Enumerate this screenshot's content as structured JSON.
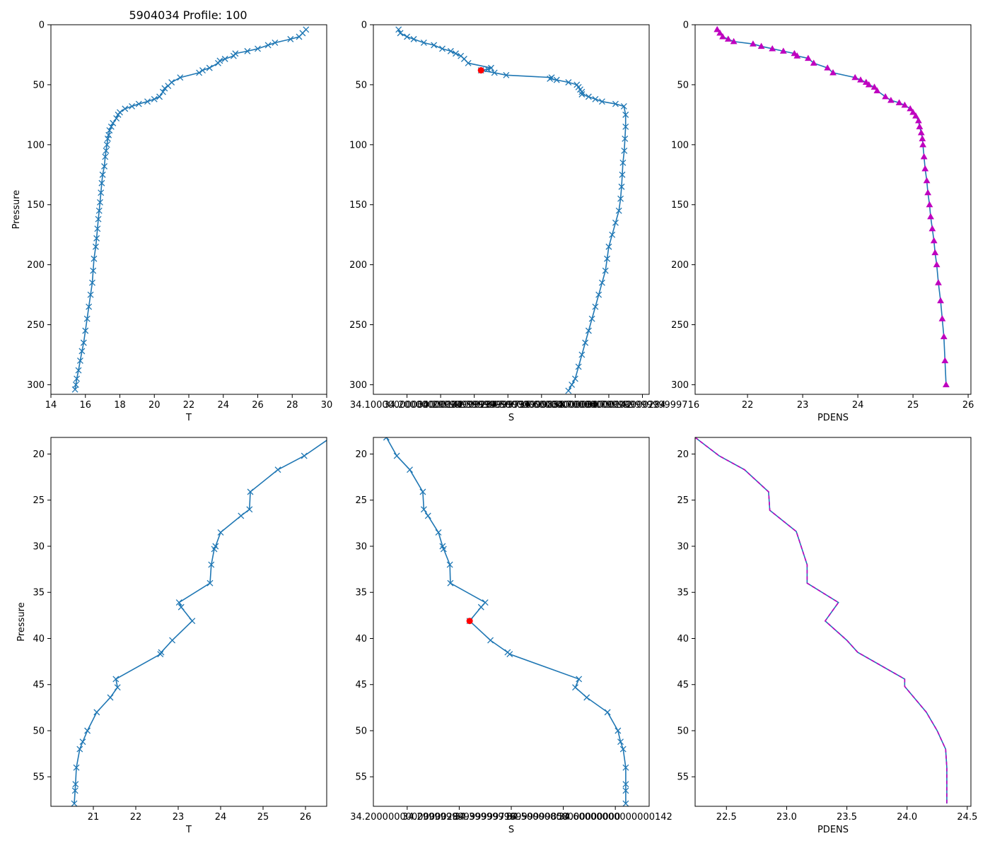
{
  "figure": {
    "title": "5904034 Profile: 100"
  },
  "colors": {
    "series": "#1f77b4",
    "density": "#bf00bf",
    "highlight": "#ff0000"
  },
  "chart_data": [
    {
      "id": "t_full",
      "type": "line",
      "xlabel": "T",
      "ylabel": "Pressure",
      "xlim": [
        14,
        30
      ],
      "ylim": [
        308,
        0
      ],
      "xticks": [
        14,
        16,
        18,
        20,
        22,
        24,
        26,
        28,
        30
      ],
      "yticks": [
        0,
        50,
        100,
        150,
        200,
        250,
        300
      ],
      "marker": "x",
      "series": [
        {
          "name": "T",
          "x": [
            28.8,
            28.6,
            28.4,
            27.9,
            27.0,
            26.6,
            26.0,
            25.4,
            24.7,
            24.6,
            24.1,
            23.8,
            23.7,
            23.2,
            22.8,
            22.6,
            21.5,
            21.0,
            20.8,
            20.6,
            20.5,
            20.3,
            20.0,
            19.6,
            19.1,
            18.7,
            18.3,
            18.0,
            17.9,
            17.8,
            17.6,
            17.5,
            17.4,
            17.35,
            17.3,
            17.25,
            17.2,
            17.15,
            17.1,
            17.0,
            16.95,
            16.9,
            16.85,
            16.8,
            16.75,
            16.7,
            16.65,
            16.6,
            16.5,
            16.45,
            16.4,
            16.3,
            16.2,
            16.1,
            16.0,
            15.9,
            15.8,
            15.7,
            15.6,
            15.5,
            15.45,
            15.4
          ],
          "y": [
            4,
            7,
            10,
            12,
            15,
            17,
            20,
            22,
            24,
            26,
            28.5,
            30,
            32,
            36,
            38,
            40,
            44,
            48,
            51,
            53,
            56,
            60,
            62,
            64,
            66,
            68,
            70,
            73,
            75,
            78,
            82,
            85,
            88,
            92,
            95,
            100,
            105,
            110,
            118,
            125,
            132,
            140,
            148,
            155,
            162,
            170,
            178,
            185,
            195,
            205,
            215,
            225,
            235,
            245,
            255,
            265,
            272,
            280,
            288,
            295,
            300,
            304
          ]
        }
      ],
      "points": []
    },
    {
      "id": "s_full",
      "type": "line",
      "xlabel": "S",
      "ylabel": "",
      "xlim": [
        34.0,
        34.82
      ],
      "ylim": [
        308,
        0
      ],
      "xticks": [
        34.1,
        34.2,
        34.3,
        34.4,
        34.5,
        34.6,
        34.7,
        34.8
      ],
      "yticks": [
        0,
        50,
        100,
        150,
        200,
        250,
        300
      ],
      "marker": "x",
      "series": [
        {
          "name": "S",
          "x": [
            34.075,
            34.08,
            34.1,
            34.12,
            34.15,
            34.18,
            34.205,
            34.23,
            34.245,
            34.26,
            34.27,
            34.282,
            34.35,
            34.34,
            34.32,
            34.36,
            34.395,
            34.53,
            34.525,
            34.545,
            34.58,
            34.605,
            34.61,
            34.615,
            34.62,
            34.62,
            34.64,
            34.66,
            34.68,
            34.72,
            34.745,
            34.75,
            34.75,
            34.748,
            34.746,
            34.742,
            34.74,
            34.738,
            34.735,
            34.73,
            34.72,
            34.71,
            34.7,
            34.695,
            34.69,
            34.68,
            34.67,
            34.66,
            34.65,
            34.64,
            34.63,
            34.62,
            34.61,
            34.6,
            34.59,
            34.58
          ],
          "y": [
            4,
            7,
            10,
            12,
            15,
            17,
            20,
            22,
            24,
            26,
            28.5,
            32,
            36,
            37,
            38,
            40,
            42,
            44,
            45,
            46,
            48,
            50,
            52,
            54,
            56,
            58,
            60,
            62,
            64,
            66,
            68,
            75,
            85,
            95,
            105,
            115,
            125,
            135,
            145,
            155,
            165,
            175,
            185,
            195,
            205,
            215,
            225,
            235,
            245,
            255,
            265,
            275,
            285,
            295,
            300,
            305
          ]
        }
      ],
      "points": [
        {
          "x": 34.32,
          "y": 38
        }
      ]
    },
    {
      "id": "pdens_full",
      "type": "line",
      "xlabel": "PDENS",
      "ylabel": "",
      "xlim": [
        21.05,
        26.05
      ],
      "ylim": [
        308,
        0
      ],
      "xticks": [
        22,
        23,
        24,
        25,
        26
      ],
      "yticks": [
        0,
        50,
        100,
        150,
        200,
        250,
        300
      ],
      "marker": "triangle",
      "series": [
        {
          "name": "PDENS",
          "x": [
            21.45,
            21.5,
            21.55,
            21.65,
            21.75,
            22.1,
            22.25,
            22.45,
            22.65,
            22.85,
            22.9,
            23.1,
            23.2,
            23.45,
            23.55,
            23.95,
            24.05,
            24.15,
            24.2,
            24.3,
            24.35,
            24.5,
            24.6,
            24.75,
            24.85,
            24.95,
            25.0,
            25.05,
            25.1,
            25.12,
            25.15,
            25.17,
            25.18,
            25.2,
            25.22,
            25.25,
            25.27,
            25.3,
            25.32,
            25.35,
            25.38,
            25.4,
            25.43,
            25.46,
            25.5,
            25.53,
            25.56,
            25.58,
            25.6
          ],
          "y": [
            4,
            7,
            10,
            12,
            14,
            16,
            18,
            20,
            22,
            24,
            26,
            28,
            32,
            36,
            40,
            44,
            46,
            48,
            50,
            52,
            55,
            60,
            63,
            65,
            67,
            70,
            73,
            76,
            80,
            85,
            90,
            95,
            100,
            110,
            120,
            130,
            140,
            150,
            160,
            170,
            180,
            190,
            200,
            215,
            230,
            245,
            260,
            280,
            300
          ]
        }
      ],
      "points": []
    },
    {
      "id": "t_zoom",
      "type": "line",
      "xlabel": "T",
      "ylabel": "Pressure",
      "xlim": [
        20.0,
        26.5
      ],
      "ylim": [
        58.2,
        18.2
      ],
      "xticks": [
        21,
        22,
        23,
        24,
        25,
        26
      ],
      "yticks": [
        20,
        25,
        30,
        35,
        40,
        45,
        50,
        55
      ],
      "marker": "x",
      "series": [
        {
          "name": "T",
          "x": [
            26.6,
            25.97,
            25.35,
            24.7,
            24.68,
            24.48,
            24.0,
            23.88,
            23.85,
            23.78,
            23.75,
            23.02,
            23.07,
            23.33,
            22.86,
            22.6,
            22.58,
            21.53,
            21.57,
            21.4,
            21.08,
            20.86,
            20.75,
            20.68,
            20.6,
            20.58,
            20.57,
            20.55
          ],
          "y": [
            18.2,
            20.2,
            21.7,
            24.1,
            26.0,
            26.7,
            28.5,
            30.0,
            30.3,
            32.0,
            34.0,
            36.1,
            36.6,
            38.1,
            40.2,
            41.5,
            41.7,
            44.4,
            45.3,
            46.4,
            48.0,
            50.0,
            51.2,
            52.0,
            54.0,
            55.8,
            56.5,
            57.9
          ]
        }
      ],
      "points": []
    },
    {
      "id": "s_zoom",
      "type": "line",
      "xlabel": "S",
      "ylabel": "",
      "xlim": [
        34.135,
        34.665
      ],
      "ylim": [
        58.2,
        18.2
      ],
      "xticks": [
        34.2,
        34.3,
        34.4,
        34.5,
        34.6
      ],
      "yticks": [
        20,
        25,
        30,
        35,
        40,
        45,
        50,
        55
      ],
      "marker": "x",
      "series": [
        {
          "name": "S",
          "x": [
            34.16,
            34.18,
            34.205,
            34.23,
            34.232,
            34.24,
            34.26,
            34.268,
            34.27,
            34.282,
            34.283,
            34.35,
            34.342,
            34.32,
            34.36,
            34.393,
            34.397,
            34.53,
            34.523,
            34.545,
            34.585,
            34.605,
            34.61,
            34.615,
            34.62,
            34.62,
            34.62,
            34.62
          ],
          "y": [
            18.2,
            20.2,
            21.7,
            24.1,
            26.0,
            26.7,
            28.5,
            30.0,
            30.3,
            32.0,
            34.0,
            36.1,
            36.6,
            38.1,
            40.2,
            41.5,
            41.7,
            44.4,
            45.3,
            46.4,
            48.0,
            50.0,
            51.2,
            52.0,
            54.0,
            55.8,
            56.5,
            57.9
          ]
        }
      ],
      "points": [
        {
          "x": 34.32,
          "y": 38.1
        }
      ]
    },
    {
      "id": "pdens_zoom",
      "type": "line",
      "xlabel": "PDENS",
      "ylabel": "",
      "xlim": [
        22.24,
        24.53
      ],
      "ylim": [
        58.2,
        18.2
      ],
      "xticks": [
        22.5,
        23.0,
        23.5,
        24.0,
        24.5
      ],
      "yticks": [
        20,
        25,
        30,
        35,
        40,
        45,
        50,
        55
      ],
      "marker": "none",
      "series": [
        {
          "name": "PDENS",
          "x": [
            22.24,
            22.44,
            22.65,
            22.85,
            22.86,
            23.08,
            23.17,
            23.17,
            23.43,
            23.32,
            23.5,
            23.59,
            23.98,
            23.98,
            24.16,
            24.25,
            24.32,
            24.33,
            24.33
          ],
          "y": [
            18.2,
            20.2,
            21.7,
            24.1,
            26.1,
            28.4,
            32.0,
            34.0,
            36.1,
            38.1,
            40.2,
            41.5,
            44.4,
            45.2,
            48.0,
            50.0,
            52.0,
            54.0,
            57.9
          ]
        }
      ],
      "points": []
    }
  ]
}
